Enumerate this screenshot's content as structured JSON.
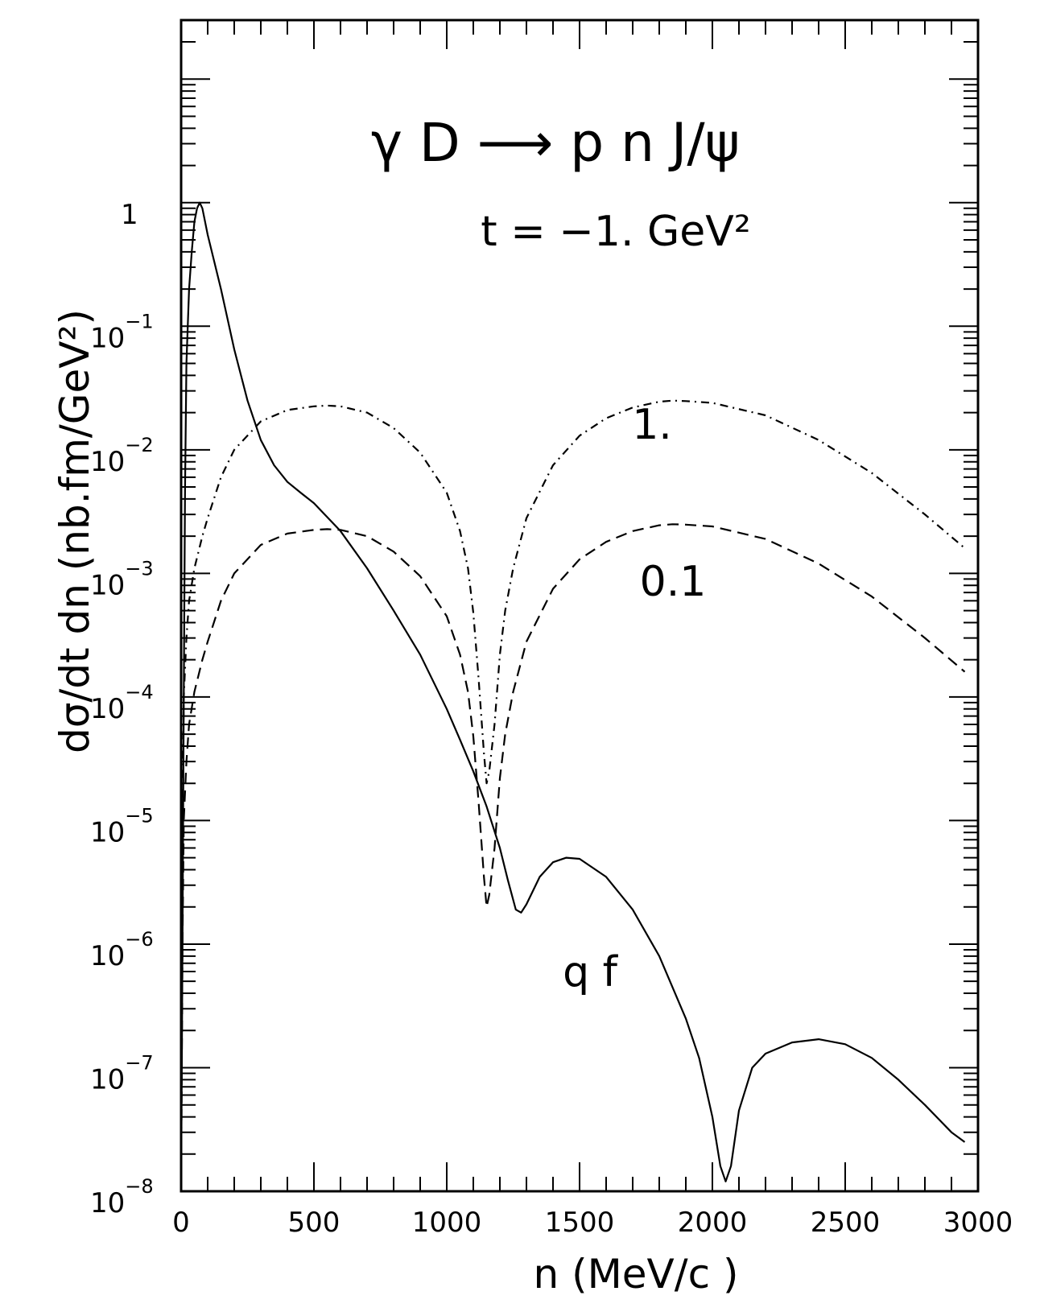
{
  "chart_data": {
    "type": "line",
    "title": "γ D ⟶ p n J/ψ",
    "subtitle": "t = −1. GeV²",
    "xlabel": "n  (MeV/c )",
    "ylabel": "dσ/dt dn (nb.fm/GeV²)",
    "xlim": [
      0,
      3000
    ],
    "ylim": [
      1e-08,
      30
    ],
    "yscale": "log",
    "grid": false,
    "x_ticks": [
      "0",
      "500",
      "1000",
      "1500",
      "2000",
      "2500",
      "3000"
    ],
    "y_ticks": [
      {
        "base": "1",
        "exp": ""
      },
      {
        "base": "10",
        "exp": "−1"
      },
      {
        "base": "10",
        "exp": "−2"
      },
      {
        "base": "10",
        "exp": "−3"
      },
      {
        "base": "10",
        "exp": "−4"
      },
      {
        "base": "10",
        "exp": "−5"
      },
      {
        "base": "10",
        "exp": "−6"
      },
      {
        "base": "10",
        "exp": "−7"
      },
      {
        "base": "10",
        "exp": "−8"
      }
    ],
    "annotations": {
      "label_1": "1.",
      "label_01": "0.1",
      "label_qf": "q f"
    },
    "series": [
      {
        "style": "solid",
        "x": [
          0,
          5,
          10,
          15,
          20,
          30,
          40,
          50,
          60,
          70,
          80,
          100,
          150,
          200,
          250,
          300,
          350,
          400,
          450,
          500,
          600,
          700,
          800,
          900,
          1000,
          1050,
          1100,
          1150,
          1200,
          1230,
          1260,
          1280,
          1300,
          1350,
          1400,
          1450,
          1500,
          1600,
          1700,
          1800,
          1900,
          1950,
          2000,
          2030,
          2050,
          2070,
          2100,
          2150,
          2200,
          2300,
          2400,
          2500,
          2600,
          2700,
          2800,
          2900,
          2950
        ],
        "y": [
          1e-08,
          1e-06,
          0.0001,
          0.005,
          0.05,
          0.2,
          0.4,
          0.7,
          0.9,
          1.0,
          0.9,
          0.55,
          0.2,
          0.065,
          0.025,
          0.012,
          0.0075,
          0.0055,
          0.0045,
          0.0037,
          0.0022,
          0.0011,
          0.0005,
          0.00022,
          8e-05,
          4.5e-05,
          2.5e-05,
          1.3e-05,
          6e-06,
          3.3e-06,
          1.9e-06,
          1.8e-06,
          2.1e-06,
          3.5e-06,
          4.6e-06,
          5e-06,
          4.9e-06,
          3.5e-06,
          1.9e-06,
          8e-07,
          2.5e-07,
          1.2e-07,
          4e-08,
          1.6e-08,
          1.2e-08,
          1.6e-08,
          4.5e-08,
          1e-07,
          1.3e-07,
          1.6e-07,
          1.7e-07,
          1.55e-07,
          1.2e-07,
          8e-08,
          5e-08,
          3e-08,
          2.5e-08
        ]
      },
      {
        "style": "dash-dot",
        "x": [
          0,
          5,
          10,
          20,
          30,
          50,
          80,
          100,
          150,
          200,
          300,
          400,
          500,
          550,
          600,
          700,
          800,
          900,
          1000,
          1050,
          1080,
          1100,
          1120,
          1140,
          1150,
          1160,
          1180,
          1200,
          1220,
          1250,
          1300,
          1400,
          1500,
          1600,
          1700,
          1800,
          1850,
          1900,
          2000,
          2200,
          2400,
          2600,
          2800,
          2950
        ],
        "y": [
          1e-07,
          1e-05,
          0.0001,
          0.0003,
          0.0006,
          0.0011,
          0.002,
          0.0028,
          0.006,
          0.01,
          0.017,
          0.021,
          0.0225,
          0.0228,
          0.0225,
          0.02,
          0.015,
          0.0095,
          0.0045,
          0.0022,
          0.0011,
          0.00048,
          0.00014,
          3.5e-05,
          2e-05,
          2.5e-05,
          6e-05,
          0.00022,
          0.0005,
          0.0011,
          0.0028,
          0.0075,
          0.013,
          0.018,
          0.022,
          0.0245,
          0.025,
          0.0248,
          0.024,
          0.019,
          0.012,
          0.0065,
          0.003,
          0.0016
        ]
      },
      {
        "style": "dashed",
        "x": [
          0,
          5,
          10,
          20,
          30,
          50,
          80,
          100,
          150,
          200,
          300,
          400,
          500,
          550,
          600,
          700,
          800,
          900,
          1000,
          1050,
          1080,
          1100,
          1120,
          1140,
          1150,
          1160,
          1180,
          1200,
          1220,
          1250,
          1300,
          1400,
          1500,
          1600,
          1700,
          1800,
          1850,
          1900,
          2000,
          2200,
          2400,
          2600,
          2800,
          2950
        ],
        "y": [
          1e-08,
          1e-06,
          1e-05,
          3e-05,
          6e-05,
          0.00011,
          0.0002,
          0.00028,
          0.0006,
          0.001,
          0.0017,
          0.0021,
          0.00225,
          0.00228,
          0.00225,
          0.002,
          0.0015,
          0.00095,
          0.00045,
          0.00022,
          0.00011,
          4.8e-05,
          1.4e-05,
          3.5e-06,
          2e-06,
          2.5e-06,
          6e-06,
          2.2e-05,
          5e-05,
          0.00011,
          0.00028,
          0.00075,
          0.0013,
          0.0018,
          0.0022,
          0.00245,
          0.0025,
          0.00248,
          0.0024,
          0.0019,
          0.0012,
          0.00065,
          0.0003,
          0.00016
        ]
      }
    ]
  }
}
